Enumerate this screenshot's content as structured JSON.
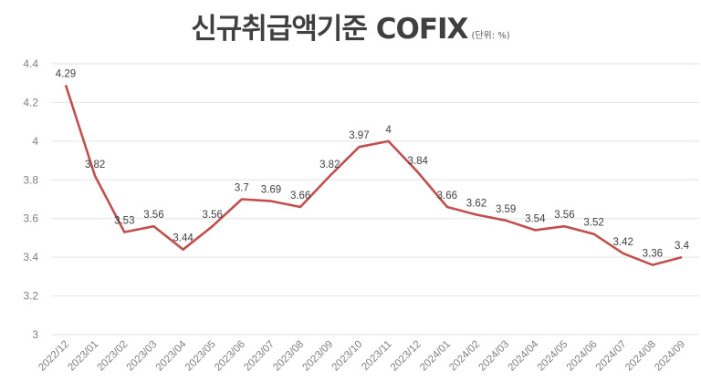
{
  "header": {
    "title": "신규취급액기준 COFIX",
    "unit": "(단위: %)"
  },
  "colors": {
    "line": "#c0504d",
    "grid": "#e8e8e8",
    "axis_text": "#808080",
    "label_text": "#404040",
    "title_text": "#404040"
  },
  "chart_data": {
    "type": "line",
    "title": "신규취급액기준 COFIX",
    "subtitle": "(단위: %)",
    "xlabel": "",
    "ylabel": "",
    "ylim": [
      3,
      4.4
    ],
    "yticks": [
      3,
      3.2,
      3.4,
      3.6,
      3.8,
      4,
      4.2,
      4.4
    ],
    "ytick_labels": [
      "3",
      "3.2",
      "3.4",
      "3.6",
      "3.8",
      "4",
      "4.2",
      "4.4"
    ],
    "grid": true,
    "legend": "none",
    "categories": [
      "2022/12",
      "2023/01",
      "2023/02",
      "2023/03",
      "2023/04",
      "2023/05",
      "2023/06",
      "2023/07",
      "2023/08",
      "2023/09",
      "2023/10",
      "2023/11",
      "2023/12",
      "2024/01",
      "2024/02",
      "2024/03",
      "2024/04",
      "2024/05",
      "2024/06",
      "2024/07",
      "2024/08",
      "2024/09"
    ],
    "series": [
      {
        "name": "신규취급액기준 COFIX",
        "values": [
          4.29,
          3.82,
          3.53,
          3.56,
          3.44,
          3.56,
          3.7,
          3.69,
          3.66,
          3.82,
          3.97,
          4,
          3.84,
          3.66,
          3.62,
          3.59,
          3.54,
          3.56,
          3.52,
          3.42,
          3.36,
          3.4
        ],
        "labels": [
          "4.29",
          "3.82",
          "3.53",
          "3.56",
          "3.44",
          "3.56",
          "3.7",
          "3.69",
          "3.66",
          "3.82",
          "3.97",
          "4",
          "3.84",
          "3.66",
          "3.62",
          "3.59",
          "3.54",
          "3.56",
          "3.52",
          "3.42",
          "3.36",
          "3.4"
        ]
      }
    ]
  }
}
